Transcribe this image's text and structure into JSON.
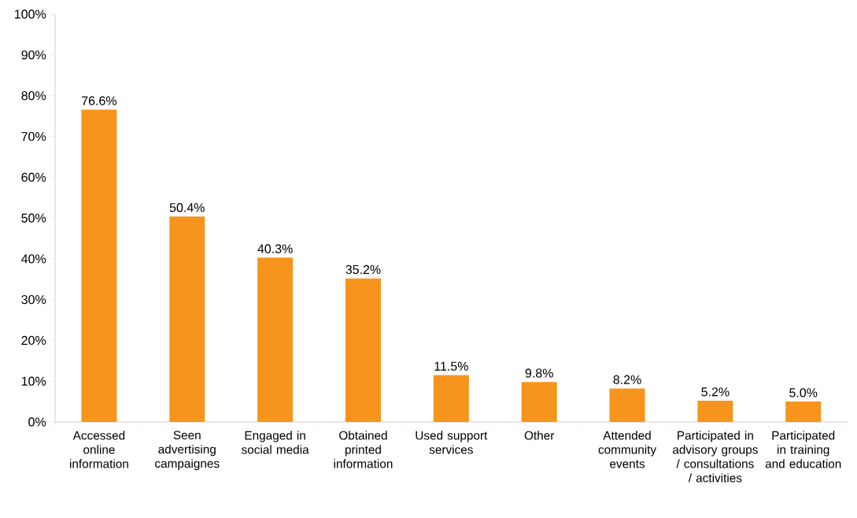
{
  "chart_data": {
    "type": "bar",
    "categories": [
      "Accessed online information",
      "Seen advertising campaignes",
      "Engaged in social media",
      "Obtained printed information",
      "Used support services",
      "Other",
      "Attended community events",
      "Participated in advisory groups / consultations / activities",
      "Participated in training and education"
    ],
    "values": [
      76.6,
      50.4,
      40.3,
      35.2,
      11.5,
      9.8,
      8.2,
      5.2,
      5.0
    ],
    "value_labels": [
      "76.6%",
      "50.4%",
      "40.3%",
      "35.2%",
      "11.5%",
      "9.8%",
      "8.2%",
      "5.2%",
      "5.0%"
    ],
    "color": "#f7941d",
    "ylim": [
      0,
      100
    ],
    "yticks": [
      {
        "value": 0,
        "label": "0%"
      },
      {
        "value": 10,
        "label": "10%"
      },
      {
        "value": 20,
        "label": "20%"
      },
      {
        "value": 30,
        "label": "30%"
      },
      {
        "value": 40,
        "label": "40%"
      },
      {
        "value": 50,
        "label": "50%"
      },
      {
        "value": 60,
        "label": "60%"
      },
      {
        "value": 70,
        "label": "70%"
      },
      {
        "value": 80,
        "label": "80%"
      },
      {
        "value": 90,
        "label": "90%"
      },
      {
        "value": 100,
        "label": "100%"
      }
    ],
    "grid": false
  }
}
